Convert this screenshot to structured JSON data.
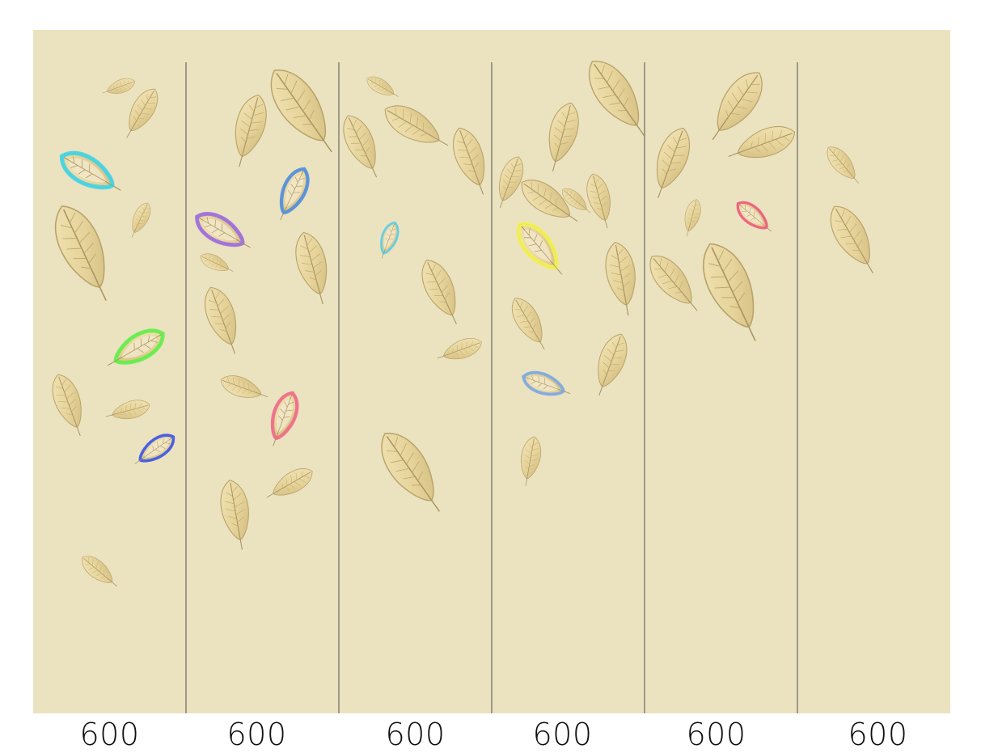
{
  "wallpaper": {
    "background_color": "#ebe2c0",
    "divider_color": "#6b6a63",
    "feather_base_color": "#e6d39a",
    "feather_edge_color": "#b8a46a",
    "panels": [
      {
        "width_label": "600"
      },
      {
        "width_label": "600"
      },
      {
        "width_label": "600"
      },
      {
        "width_label": "600"
      },
      {
        "width_label": "600"
      },
      {
        "width_label": "600"
      }
    ],
    "accent_colors": {
      "cyan": "#3fd4e6",
      "green": "#62f04a",
      "blue": "#3b55e8",
      "purple": "#9a6be0",
      "steel-blue": "#4f8ee0",
      "pink": "#f06a8a",
      "light-cyan": "#5fcde6",
      "yellow": "#f2f250",
      "sky-blue": "#7aa8e8",
      "rose": "#ef5a7e"
    }
  }
}
